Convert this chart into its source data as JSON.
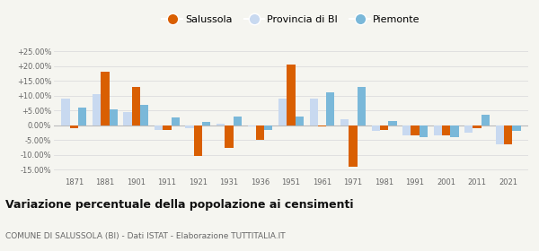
{
  "years": [
    1871,
    1881,
    1901,
    1911,
    1921,
    1931,
    1936,
    1951,
    1961,
    1971,
    1981,
    1991,
    2001,
    2011,
    2021
  ],
  "salussola": [
    -1.0,
    18.0,
    13.0,
    -1.5,
    -10.5,
    -7.5,
    -5.0,
    20.5,
    -0.5,
    -14.0,
    -1.5,
    -3.5,
    -3.5,
    -1.0,
    -6.5
  ],
  "provincia_bi": [
    9.0,
    10.5,
    4.5,
    -1.5,
    -1.0,
    0.5,
    -0.5,
    9.0,
    9.0,
    2.0,
    -2.0,
    -3.5,
    -3.5,
    -2.5,
    -6.5
  ],
  "piemonte": [
    6.0,
    5.5,
    7.0,
    2.5,
    1.0,
    3.0,
    -1.5,
    3.0,
    11.0,
    13.0,
    1.5,
    -4.0,
    -4.0,
    3.5,
    -2.0
  ],
  "color_salussola": "#d95f02",
  "color_provincia": "#c8d9f0",
  "color_piemonte": "#7ab8d9",
  "bg_color": "#f5f5f0",
  "title": "Variazione percentuale della popolazione ai censimenti",
  "subtitle": "COMUNE DI SALUSSOLA (BI) - Dati ISTAT - Elaborazione TUTTITALIA.IT",
  "ylim": [
    -17.0,
    27.0
  ],
  "yticks": [
    -15.0,
    -10.0,
    -5.0,
    0.0,
    5.0,
    10.0,
    15.0,
    20.0,
    25.0
  ],
  "legend_labels": [
    "Salussola",
    "Provincia di BI",
    "Piemonte"
  ],
  "bar_width": 0.27
}
